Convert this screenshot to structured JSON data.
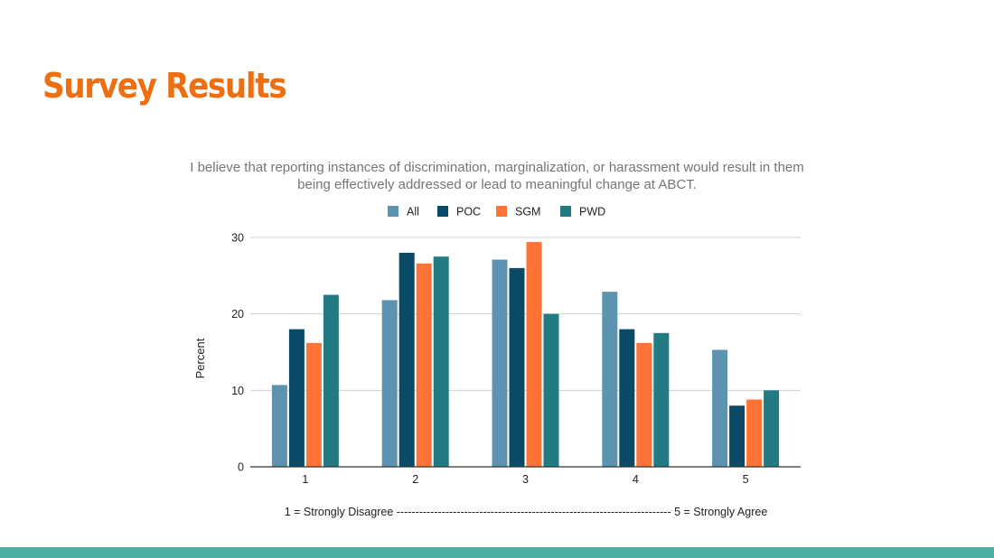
{
  "slide": {
    "title": "Survey Results",
    "accent_color": "#ee6f12",
    "bottom_bar_color": "#4aaea3"
  },
  "chart_data": {
    "type": "bar",
    "title": "I believe that reporting instances of discrimination, marginalization, or harassment would result in them being effectively addressed or lead to meaningful change at ABCT.",
    "xlabel": "1 = Strongly Disagree ------------------------------------------------------------------------- 5 = Strongly Agree",
    "ylabel": "Percent",
    "categories": [
      "1",
      "2",
      "3",
      "4",
      "5"
    ],
    "ylim": [
      0,
      30
    ],
    "yticks": [
      "0",
      "10",
      "20",
      "30"
    ],
    "grid": true,
    "legend_position": "top",
    "series": [
      {
        "name": "All",
        "color": "#5b93b1",
        "values": [
          10.7,
          21.8,
          27.1,
          22.9,
          15.3
        ]
      },
      {
        "name": "POC",
        "color": "#0a4a66",
        "values": [
          18.0,
          28.0,
          26.0,
          18.0,
          8.0
        ]
      },
      {
        "name": "SGM",
        "color": "#ff7436",
        "values": [
          16.2,
          26.6,
          29.4,
          16.2,
          8.8
        ]
      },
      {
        "name": "PWD",
        "color": "#227b82",
        "values": [
          22.5,
          27.5,
          20.0,
          17.5,
          10.0
        ]
      }
    ]
  }
}
